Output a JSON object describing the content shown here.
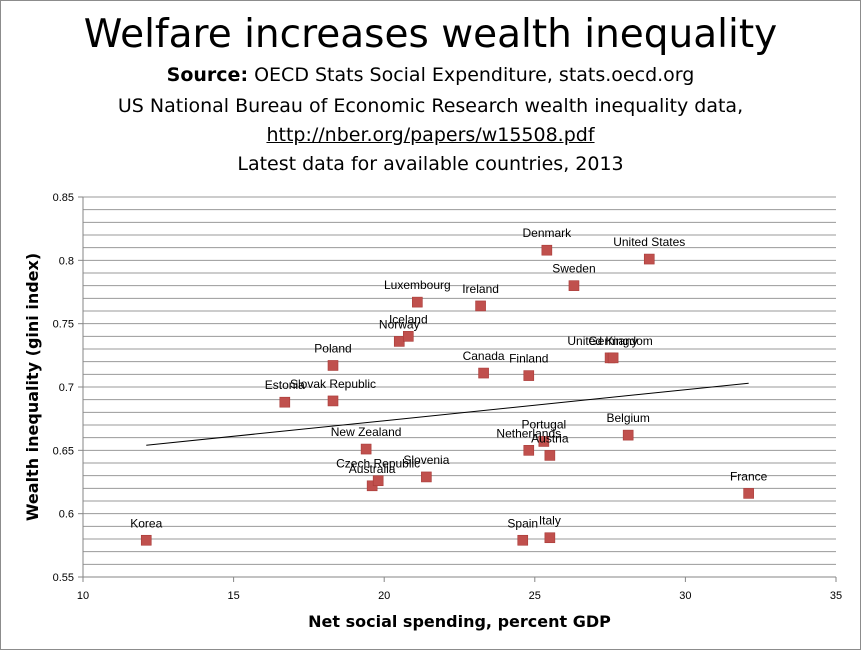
{
  "header": {
    "title": "Welfare increases wealth inequality",
    "source_prefix": "Source:",
    "source_text": " OECD Stats Social Expenditure, stats.oecd.org",
    "line2": "US National Bureau of Economic Research wealth inequality data,",
    "line3": "http://nber.org/papers/w15508.pdf",
    "line4": "Latest data for available countries, 2013"
  },
  "chart_data": {
    "type": "scatter",
    "title": "Welfare increases wealth inequality",
    "xlabel": "Net social spending, percent GDP",
    "ylabel": "Wealth inequality (gini index)",
    "xlim": [
      10,
      35
    ],
    "ylim": [
      0.55,
      0.85
    ],
    "x_ticks": [
      "10",
      "15",
      "20",
      "25",
      "30",
      "35"
    ],
    "y_ticks": [
      "0.55",
      "0.6",
      "0.65",
      "0.7",
      "0.75",
      "0.8",
      "0.85"
    ],
    "grid": "horizontal",
    "marker_color": "#c0504d",
    "points": [
      {
        "label": "Korea",
        "x": 12.1,
        "y": 0.579
      },
      {
        "label": "Estonia",
        "x": 16.7,
        "y": 0.688
      },
      {
        "label": "Slovak Republic",
        "x": 18.3,
        "y": 0.689
      },
      {
        "label": "Poland",
        "x": 18.3,
        "y": 0.717
      },
      {
        "label": "New Zealand",
        "x": 19.4,
        "y": 0.651
      },
      {
        "label": "Australia",
        "x": 19.6,
        "y": 0.622
      },
      {
        "label": "Czech Republic",
        "x": 19.8,
        "y": 0.626
      },
      {
        "label": "Norway",
        "x": 20.5,
        "y": 0.736
      },
      {
        "label": "Iceland",
        "x": 20.8,
        "y": 0.74
      },
      {
        "label": "Luxembourg",
        "x": 21.1,
        "y": 0.767
      },
      {
        "label": "Slovenia",
        "x": 21.4,
        "y": 0.629
      },
      {
        "label": "Ireland",
        "x": 23.2,
        "y": 0.764
      },
      {
        "label": "Canada",
        "x": 23.3,
        "y": 0.711
      },
      {
        "label": "Spain",
        "x": 24.6,
        "y": 0.579
      },
      {
        "label": "Finland",
        "x": 24.8,
        "y": 0.709
      },
      {
        "label": "Netherlands",
        "x": 24.8,
        "y": 0.65
      },
      {
        "label": "Portugal",
        "x": 25.3,
        "y": 0.657
      },
      {
        "label": "Denmark",
        "x": 25.4,
        "y": 0.808
      },
      {
        "label": "Austria",
        "x": 25.5,
        "y": 0.646
      },
      {
        "label": "Italy",
        "x": 25.5,
        "y": 0.581
      },
      {
        "label": "Sweden",
        "x": 26.3,
        "y": 0.78
      },
      {
        "label": "United Kingdom",
        "x": 27.5,
        "y": 0.723
      },
      {
        "label": "Germany",
        "x": 27.6,
        "y": 0.723
      },
      {
        "label": "Belgium",
        "x": 28.1,
        "y": 0.662
      },
      {
        "label": "United States",
        "x": 28.8,
        "y": 0.801
      },
      {
        "label": "France",
        "x": 32.1,
        "y": 0.616
      }
    ],
    "trendline": {
      "x": [
        12.1,
        32.1
      ],
      "y": [
        0.654,
        0.703
      ]
    }
  }
}
